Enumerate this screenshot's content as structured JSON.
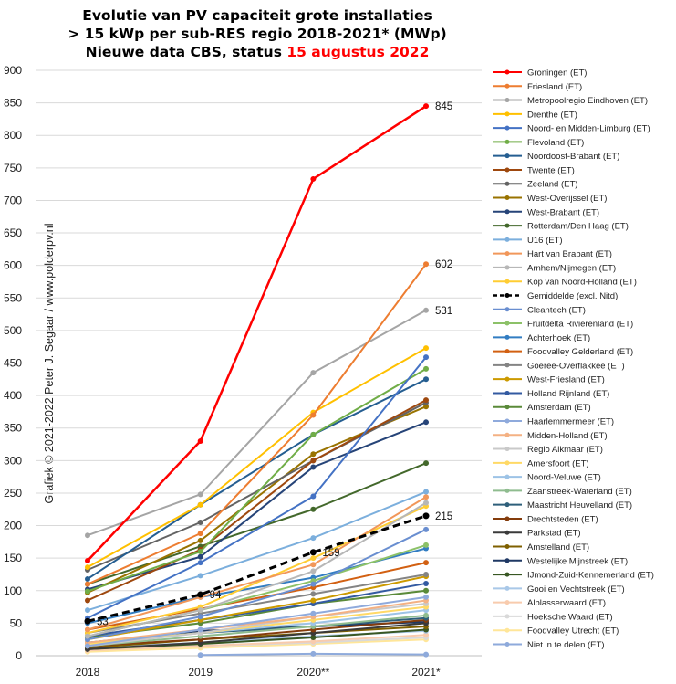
{
  "chart_data": {
    "type": "line",
    "title": {
      "line1": "Evolutie van PV capaciteit grote installaties",
      "line2": "> 15 kWp per sub-RES regio 2018-2021* (MWp)",
      "line3_prefix": "Nieuwe data CBS, status ",
      "line3_date": "15 augustus 2022"
    },
    "credit": "Grafiek © 2021-2022 Peter J. Segaar / www.polderpv.nl",
    "x": [
      "2018",
      "2019",
      "2020**",
      "2021*"
    ],
    "ylim": [
      0,
      900
    ],
    "yticks": [
      0,
      50,
      100,
      150,
      200,
      250,
      300,
      350,
      400,
      450,
      500,
      550,
      600,
      650,
      700,
      750,
      800,
      850,
      900
    ],
    "grid": true,
    "legend_position": "right",
    "series": [
      {
        "name": "Groningen (ET)",
        "color": "#ff0000",
        "width": 2.5,
        "values": [
          146,
          330,
          733,
          845
        ]
      },
      {
        "name": "Friesland (ET)",
        "color": "#ed7d31",
        "width": 2,
        "values": [
          110,
          188,
          370,
          602
        ]
      },
      {
        "name": "Metropoolregio Eindhoven (ET)",
        "color": "#a5a5a5",
        "width": 2,
        "values": [
          185,
          248,
          435,
          531
        ]
      },
      {
        "name": "Drenthe (ET)",
        "color": "#ffc000",
        "width": 2,
        "values": [
          136,
          232,
          374,
          473
        ]
      },
      {
        "name": "Noord- en Midden-Limburg (ET)",
        "color": "#4472c4",
        "width": 2,
        "values": [
          58,
          143,
          245,
          459
        ]
      },
      {
        "name": "Flevoland (ET)",
        "color": "#70ad47",
        "width": 2,
        "values": [
          99,
          160,
          340,
          441
        ]
      },
      {
        "name": "Noordoost-Brabant (ET)",
        "color": "#255e91",
        "width": 2,
        "values": [
          118,
          232,
          340,
          425
        ]
      },
      {
        "name": "Twente (ET)",
        "color": "#9e480e",
        "width": 2,
        "values": [
          85,
          163,
          300,
          393
        ]
      },
      {
        "name": "Zeeland (ET)",
        "color": "#636363",
        "width": 2,
        "values": [
          132,
          205,
          300,
          389
        ]
      },
      {
        "name": "West-Overijssel (ET)",
        "color": "#997300",
        "width": 2,
        "values": [
          97,
          177,
          310,
          383
        ]
      },
      {
        "name": "West-Brabant (ET)",
        "color": "#264478",
        "width": 2,
        "values": [
          102,
          152,
          290,
          359
        ]
      },
      {
        "name": "Rotterdam/Den Haag (ET)",
        "color": "#43682b",
        "width": 2,
        "values": [
          110,
          168,
          225,
          296
        ]
      },
      {
        "name": "U16 (ET)",
        "color": "#7cafdd",
        "width": 2,
        "values": [
          70,
          123,
          181,
          252
        ]
      },
      {
        "name": "Hart van Brabant (ET)",
        "color": "#f1975a",
        "width": 2,
        "values": [
          40,
          90,
          140,
          244
        ]
      },
      {
        "name": "Arnhem/Nijmegen (ET)",
        "color": "#b7b7b7",
        "width": 2,
        "values": [
          30,
          70,
          130,
          235
        ]
      },
      {
        "name": "Kop van Noord-Holland (ET)",
        "color": "#ffcd33",
        "width": 2,
        "values": [
          35,
          75,
          150,
          230
        ]
      },
      {
        "name": "Gemiddelde (excl. Nitd)",
        "color": "#000000",
        "width": 3,
        "dash": "8,5",
        "values": [
          53,
          94,
          159,
          215
        ]
      },
      {
        "name": "Cleantech (ET)",
        "color": "#698ed0",
        "width": 2,
        "values": [
          25,
          60,
          110,
          194
        ]
      },
      {
        "name": "Fruitdelta Rivierenland (ET)",
        "color": "#8cc168",
        "width": 2,
        "values": [
          30,
          70,
          115,
          170
        ]
      },
      {
        "name": "Achterhoek (ET)",
        "color": "#327dc2",
        "width": 2,
        "values": [
          50,
          90,
          120,
          165
        ]
      },
      {
        "name": "Foodvalley Gelderland (ET)",
        "color": "#d26012",
        "width": 2,
        "values": [
          40,
          72,
          105,
          143
        ]
      },
      {
        "name": "Goeree-Overflakkee (ET)",
        "color": "#848484",
        "width": 2,
        "values": [
          35,
          65,
          95,
          125
        ]
      },
      {
        "name": "West-Friesland (ET)",
        "color": "#cc9a00",
        "width": 2,
        "values": [
          25,
          55,
          85,
          122
        ]
      },
      {
        "name": "Holland Rijnland (ET)",
        "color": "#335aa1",
        "width": 2,
        "values": [
          30,
          55,
          80,
          111
        ]
      },
      {
        "name": "Amsterdam (ET)",
        "color": "#5a8a39",
        "width": 2,
        "values": [
          28,
          50,
          80,
          100
        ]
      },
      {
        "name": "Haarlemmermeer (ET)",
        "color": "#8faadc",
        "width": 2,
        "values": [
          15,
          40,
          65,
          90
        ]
      },
      {
        "name": "Midden-Holland (ET)",
        "color": "#f4b183",
        "width": 2,
        "values": [
          20,
          40,
          60,
          85
        ]
      },
      {
        "name": "Regio Alkmaar (ET)",
        "color": "#c9c9c9",
        "width": 2,
        "values": [
          15,
          35,
          60,
          80
        ]
      },
      {
        "name": "Amersfoort (ET)",
        "color": "#ffd966",
        "width": 2,
        "values": [
          18,
          35,
          55,
          75
        ]
      },
      {
        "name": "Noord-Veluwe (ET)",
        "color": "#9dc3e6",
        "width": 2,
        "values": [
          20,
          35,
          50,
          70
        ]
      },
      {
        "name": "Zaanstreek-Waterland (ET)",
        "color": "#8fbc8f",
        "width": 2,
        "values": [
          15,
          30,
          45,
          62
        ]
      },
      {
        "name": "Maastricht Heuvelland (ET)",
        "color": "#2e5f7a",
        "width": 2,
        "values": [
          20,
          35,
          45,
          58
        ]
      },
      {
        "name": "Drechtsteden (ET)",
        "color": "#843c0c",
        "width": 2,
        "values": [
          15,
          25,
          40,
          55
        ]
      },
      {
        "name": "Parkstad (ET)",
        "color": "#3a3a3a",
        "width": 2,
        "values": [
          10,
          20,
          35,
          50
        ]
      },
      {
        "name": "Amstelland (ET)",
        "color": "#7f6000",
        "width": 2,
        "values": [
          12,
          25,
          35,
          45
        ]
      },
      {
        "name": "Westelijke Mijnstreek (ET)",
        "color": "#1f3864",
        "width": 2,
        "values": [
          20,
          38,
          45,
          52
        ]
      },
      {
        "name": "IJmond-Zuid-Kennemerland (ET)",
        "color": "#385723",
        "width": 2,
        "values": [
          10,
          18,
          28,
          40
        ]
      },
      {
        "name": "Gooi en Vechtstreek (ET)",
        "color": "#a9c8e8",
        "width": 2,
        "values": [
          12,
          20,
          30,
          38
        ]
      },
      {
        "name": "Alblasserwaard (ET)",
        "color": "#f8cbad",
        "width": 2,
        "values": [
          8,
          15,
          22,
          32
        ]
      },
      {
        "name": "Hoeksche Waard (ET)",
        "color": "#d9d9d9",
        "width": 2,
        "values": [
          10,
          15,
          20,
          28
        ]
      },
      {
        "name": "Foodvalley Utrecht (ET)",
        "color": "#ffe699",
        "width": 2,
        "values": [
          6,
          12,
          18,
          25
        ]
      },
      {
        "name": "Niet in te delen (ET)",
        "color": "#8eaadb",
        "width": 2,
        "values": [
          null,
          1,
          3,
          2
        ]
      }
    ],
    "data_labels": [
      {
        "series": "Groningen (ET)",
        "x": "2021*",
        "text": "845"
      },
      {
        "series": "Friesland (ET)",
        "x": "2021*",
        "text": "602"
      },
      {
        "series": "Metropoolregio Eindhoven (ET)",
        "x": "2021*",
        "text": "531"
      },
      {
        "series": "Gemiddelde (excl. Nitd)",
        "x": "2018",
        "text": "53"
      },
      {
        "series": "Gemiddelde (excl. Nitd)",
        "x": "2019",
        "text": "94"
      },
      {
        "series": "Gemiddelde (excl. Nitd)",
        "x": "2020**",
        "text": "159"
      },
      {
        "series": "Gemiddelde (excl. Nitd)",
        "x": "2021*",
        "text": "215"
      }
    ]
  }
}
